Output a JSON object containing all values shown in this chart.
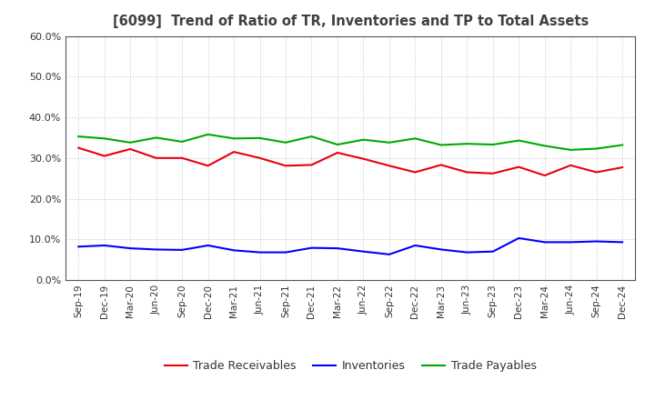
{
  "title": "[6099]  Trend of Ratio of TR, Inventories and TP to Total Assets",
  "x_labels": [
    "Sep-19",
    "Dec-19",
    "Mar-20",
    "Jun-20",
    "Sep-20",
    "Dec-20",
    "Mar-21",
    "Jun-21",
    "Sep-21",
    "Dec-21",
    "Mar-22",
    "Jun-22",
    "Sep-22",
    "Dec-22",
    "Mar-23",
    "Jun-23",
    "Sep-23",
    "Dec-23",
    "Mar-24",
    "Jun-24",
    "Sep-24",
    "Dec-24"
  ],
  "trade_receivables": [
    0.325,
    0.305,
    0.322,
    0.3,
    0.3,
    0.281,
    0.315,
    0.3,
    0.281,
    0.283,
    0.313,
    0.298,
    0.281,
    0.265,
    0.283,
    0.265,
    0.262,
    0.278,
    0.257,
    0.282,
    0.265,
    0.277
  ],
  "inventories": [
    0.082,
    0.085,
    0.078,
    0.075,
    0.074,
    0.085,
    0.073,
    0.068,
    0.068,
    0.079,
    0.078,
    0.07,
    0.063,
    0.085,
    0.075,
    0.068,
    0.07,
    0.103,
    0.093,
    0.093,
    0.095,
    0.093
  ],
  "trade_payables": [
    0.353,
    0.348,
    0.338,
    0.35,
    0.34,
    0.358,
    0.348,
    0.349,
    0.338,
    0.353,
    0.333,
    0.345,
    0.338,
    0.348,
    0.332,
    0.335,
    0.333,
    0.343,
    0.33,
    0.32,
    0.323,
    0.332
  ],
  "tr_color": "#e8000d",
  "inv_color": "#0000ff",
  "tp_color": "#00aa00",
  "ylim": [
    0.0,
    0.6
  ],
  "yticks": [
    0.0,
    0.1,
    0.2,
    0.3,
    0.4,
    0.5,
    0.6
  ],
  "legend_labels": [
    "Trade Receivables",
    "Inventories",
    "Trade Payables"
  ],
  "bg_color": "#ffffff",
  "grid_color": "#bbbbbb",
  "title_color": "#404040"
}
